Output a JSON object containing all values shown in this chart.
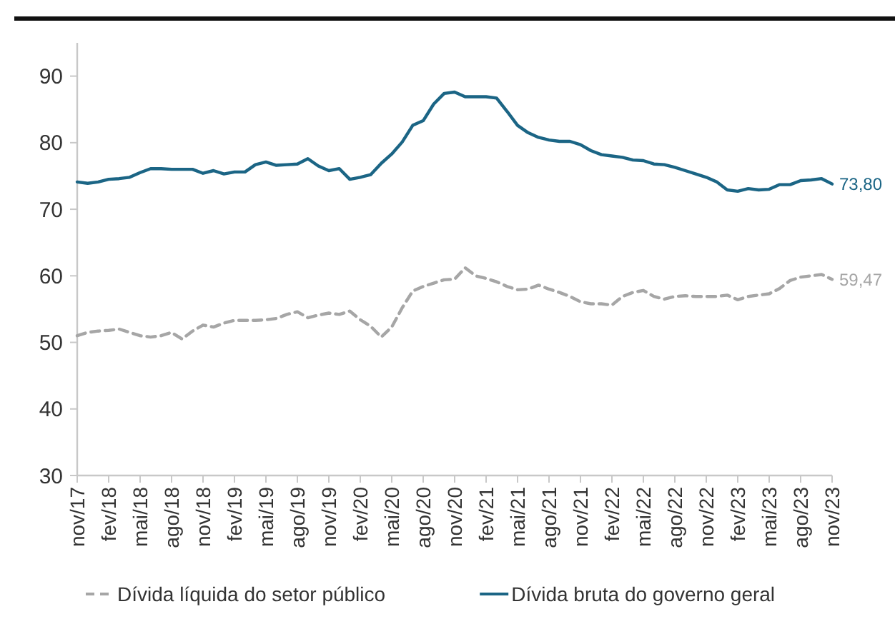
{
  "chart_data": {
    "type": "line",
    "categories": [
      "nov/17",
      null,
      null,
      "fev/18",
      null,
      null,
      "mai/18",
      null,
      null,
      "ago/18",
      null,
      null,
      "nov/18",
      null,
      null,
      "fev/19",
      null,
      null,
      "mai/19",
      null,
      null,
      "ago/19",
      null,
      null,
      "nov/19",
      null,
      null,
      "fev/20",
      null,
      null,
      "mai/20",
      null,
      null,
      "ago/20",
      null,
      null,
      "nov/20",
      null,
      null,
      "fev/21",
      null,
      null,
      "mai/21",
      null,
      null,
      "ago/21",
      null,
      null,
      "nov/21",
      null,
      null,
      "fev/22",
      null,
      null,
      "mai/22",
      null,
      null,
      "ago/22",
      null,
      null,
      "nov/22",
      null,
      null,
      "fev/23",
      null,
      null,
      "mai/23",
      null,
      null,
      "ago/23",
      null,
      null,
      "nov/23"
    ],
    "series": [
      {
        "name": "Dívida líquida do setor público",
        "color": "#a6a6a6",
        "line_style": "dashed",
        "values": [
          51.0,
          51.5,
          51.7,
          51.8,
          52.0,
          51.5,
          51.0,
          50.8,
          51.0,
          51.5,
          50.5,
          51.7,
          52.6,
          52.3,
          52.9,
          53.3,
          53.3,
          53.3,
          53.4,
          53.6,
          54.2,
          54.6,
          53.7,
          54.1,
          54.4,
          54.2,
          54.7,
          53.4,
          52.4,
          50.8,
          52.3,
          55.2,
          57.7,
          58.4,
          58.9,
          59.4,
          59.5,
          61.2,
          60.0,
          59.6,
          59.1,
          58.4,
          57.9,
          58.0,
          58.6,
          58.0,
          57.5,
          56.9,
          56.1,
          55.8,
          55.8,
          55.6,
          56.9,
          57.5,
          57.8,
          56.9,
          56.5,
          56.9,
          57.0,
          56.9,
          56.9,
          56.9,
          57.1,
          56.4,
          56.9,
          57.1,
          57.3,
          58.1,
          59.3,
          59.8,
          60.0,
          60.2,
          59.47
        ],
        "value_labels": [
          null,
          null,
          null,
          null,
          null,
          null,
          null,
          null,
          null,
          null,
          null,
          null,
          null,
          null,
          null,
          null,
          null,
          null,
          null,
          null,
          null,
          null,
          null,
          null,
          null,
          null,
          null,
          null,
          null,
          null,
          null,
          null,
          null,
          null,
          null,
          null,
          null,
          null,
          null,
          null,
          null,
          null,
          null,
          null,
          null,
          null,
          null,
          null,
          null,
          null,
          null,
          null,
          null,
          null,
          null,
          null,
          null,
          null,
          null,
          null,
          null,
          null,
          null,
          null,
          null,
          null,
          null,
          null,
          null,
          null,
          null,
          null,
          "59,47"
        ]
      },
      {
        "name": "Dívida bruta do governo geral",
        "color": "#1b6585",
        "line_style": "solid",
        "values": [
          74.1,
          73.9,
          74.1,
          74.5,
          74.6,
          74.8,
          75.5,
          76.1,
          76.1,
          76.0,
          76.0,
          76.0,
          75.4,
          75.8,
          75.3,
          75.6,
          75.6,
          76.7,
          77.1,
          76.6,
          76.7,
          76.8,
          77.6,
          76.5,
          75.8,
          76.1,
          74.5,
          74.8,
          75.2,
          76.9,
          78.3,
          80.1,
          82.6,
          83.3,
          85.8,
          87.4,
          87.6,
          86.9,
          86.9,
          86.9,
          86.7,
          84.7,
          82.6,
          81.5,
          80.8,
          80.4,
          80.2,
          80.2,
          79.7,
          78.8,
          78.2,
          78.0,
          77.8,
          77.4,
          77.3,
          76.8,
          76.7,
          76.3,
          75.8,
          75.3,
          74.8,
          74.1,
          72.9,
          72.7,
          73.1,
          72.9,
          73.0,
          73.7,
          73.7,
          74.3,
          74.4,
          74.6,
          73.8
        ],
        "value_labels": [
          null,
          null,
          null,
          null,
          null,
          null,
          null,
          null,
          null,
          null,
          null,
          null,
          null,
          null,
          null,
          null,
          null,
          null,
          null,
          null,
          null,
          null,
          null,
          null,
          null,
          null,
          null,
          null,
          null,
          null,
          null,
          null,
          null,
          null,
          null,
          null,
          null,
          null,
          null,
          null,
          null,
          null,
          null,
          null,
          null,
          null,
          null,
          null,
          null,
          null,
          null,
          null,
          null,
          null,
          null,
          null,
          null,
          null,
          null,
          null,
          null,
          null,
          null,
          null,
          null,
          null,
          null,
          null,
          null,
          null,
          null,
          null,
          "73,80"
        ]
      }
    ],
    "ylim": [
      30,
      95
    ],
    "yticks": [
      30,
      40,
      50,
      60,
      70,
      80,
      90
    ],
    "grid": false,
    "legend": "bottom",
    "marker": "none"
  }
}
